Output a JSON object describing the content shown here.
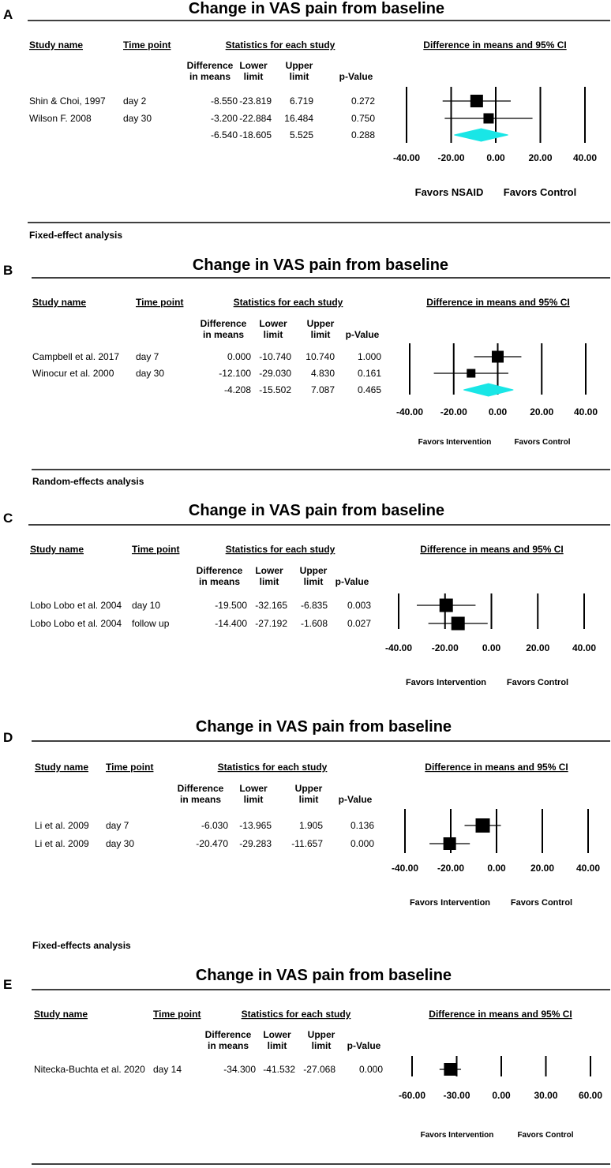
{
  "column_headers": {
    "study_name": "Study name",
    "time_point": "Time point",
    "statistics": "Statistics for each study",
    "forest": "Difference in means and 95% CI",
    "diff_line1": "Difference",
    "diff_line2": "in means",
    "lower_line1": "Lower",
    "lower_line2": "limit",
    "upper_line1": "Upper",
    "upper_line2": "limit",
    "pvalue": "p-Value"
  },
  "chart_data": [
    {
      "type": "forest",
      "panel": "A",
      "title": "Change in VAS pain from baseline",
      "xlim": [
        -40,
        40
      ],
      "xticks": [
        "-40.00",
        "-20.00",
        "0.00",
        "20.00",
        "40.00"
      ],
      "favors": [
        "Favors NSAID",
        "Favors Control"
      ],
      "footnote": "Fixed-effect analysis",
      "rows": [
        {
          "study": "Shin & Choi, 1997",
          "time": "day 2",
          "diff": "-8.550",
          "lower": "-23.819",
          "upper": "6.719",
          "p": "0.272",
          "x": -8.55,
          "lo": -23.819,
          "hi": 6.719,
          "weight": 1.0
        },
        {
          "study": "Wilson F. 2008",
          "time": "day 30",
          "diff": "-3.200",
          "lower": "-22.884",
          "upper": "16.484",
          "p": "0.750",
          "x": -3.2,
          "lo": -22.884,
          "hi": 16.484,
          "weight": 0.7
        },
        {
          "study": "",
          "time": "",
          "diff": "-6.540",
          "lower": "-18.605",
          "upper": "5.525",
          "p": "0.288",
          "x": -6.54,
          "lo": -18.605,
          "hi": 5.525,
          "summary": true
        }
      ]
    },
    {
      "type": "forest",
      "panel": "B",
      "title": "Change in VAS pain from baseline",
      "xlim": [
        -40,
        40
      ],
      "xticks": [
        "-40.00",
        "-20.00",
        "0.00",
        "20.00",
        "40.00"
      ],
      "favors": [
        "Favors Intervention",
        "Favors Control"
      ],
      "footnote": "Random-effects analysis",
      "rows": [
        {
          "study": "Campbell et al. 2017",
          "time": "day 7",
          "diff": "0.000",
          "lower": "-10.740",
          "upper": "10.740",
          "p": "1.000",
          "x": 0,
          "lo": -10.74,
          "hi": 10.74,
          "weight": 1.0
        },
        {
          "study": "Winocur et al. 2000",
          "time": "day 30",
          "diff": "-12.100",
          "lower": "-29.030",
          "upper": "4.830",
          "p": "0.161",
          "x": -12.1,
          "lo": -29.03,
          "hi": 4.83,
          "weight": 0.6
        },
        {
          "study": "",
          "time": "",
          "diff": "-4.208",
          "lower": "-15.502",
          "upper": "7.087",
          "p": "0.465",
          "x": -4.208,
          "lo": -15.502,
          "hi": 7.087,
          "summary": true
        }
      ]
    },
    {
      "type": "forest",
      "panel": "C",
      "title": "Change in VAS pain from baseline",
      "xlim": [
        -40,
        40
      ],
      "xticks": [
        "-40.00",
        "-20.00",
        "0.00",
        "20.00",
        "40.00"
      ],
      "favors": [
        "Favors Intervention",
        "Favors Control"
      ],
      "footnote": "",
      "rows": [
        {
          "study": "Lobo Lobo et al. 2004",
          "time": "day 10",
          "diff": "-19.500",
          "lower": "-32.165",
          "upper": "-6.835",
          "p": "0.003",
          "x": -19.5,
          "lo": -32.165,
          "hi": -6.835,
          "weight": 1.0
        },
        {
          "study": "Lobo Lobo et al. 2004",
          "time": "follow up",
          "diff": "-14.400",
          "lower": "-27.192",
          "upper": "-1.608",
          "p": "0.027",
          "x": -14.4,
          "lo": -27.192,
          "hi": -1.608,
          "weight": 1.0
        }
      ]
    },
    {
      "type": "forest",
      "panel": "D",
      "title": "Change in VAS pain from baseline",
      "xlim": [
        -40,
        40
      ],
      "xticks": [
        "-40.00",
        "-20.00",
        "0.00",
        "20.00",
        "40.00"
      ],
      "favors": [
        "Favors Intervention",
        "Favors Control"
      ],
      "footnote": "Fixed-effects analysis",
      "rows": [
        {
          "study": "Li et al. 2009",
          "time": "day  7",
          "diff": "-6.030",
          "lower": "-13.965",
          "upper": "1.905",
          "p": "0.136",
          "x": -6.03,
          "lo": -13.965,
          "hi": 1.905,
          "weight": 1.0
        },
        {
          "study": "Li et al. 2009",
          "time": "day 30",
          "diff": "-20.470",
          "lower": "-29.283",
          "upper": "-11.657",
          "p": "0.000",
          "x": -20.47,
          "lo": -29.283,
          "hi": -11.657,
          "weight": 0.9
        }
      ]
    },
    {
      "type": "forest",
      "panel": "E",
      "title": "Change in VAS pain from baseline",
      "xlim": [
        -60,
        60
      ],
      "xticks": [
        "-60.00",
        "-30.00",
        "0.00",
        "30.00",
        "60.00"
      ],
      "favors": [
        "Favors Intervention",
        "Favors Control"
      ],
      "footnote": "",
      "rows": [
        {
          "study": "Nitecka-Buchta et al. 2020",
          "time": "day 14",
          "diff": "-34.300",
          "lower": "-41.532",
          "upper": "-27.068",
          "p": "0.000",
          "x": -34.3,
          "lo": -41.532,
          "hi": -27.068,
          "weight": 1.0
        }
      ]
    }
  ]
}
